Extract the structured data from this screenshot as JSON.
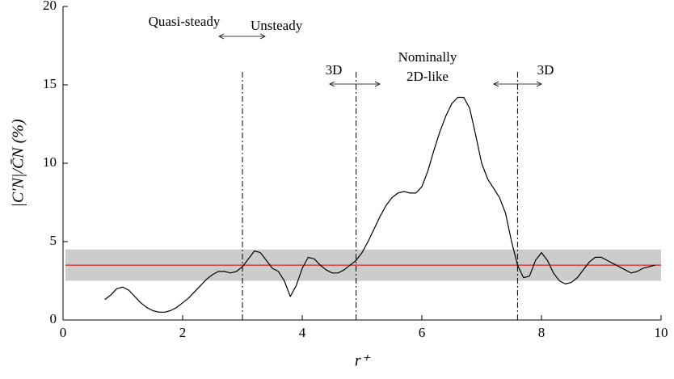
{
  "chart_data": {
    "type": "line",
    "xlabel": "r⁺",
    "ylabel": "|C′N|/C̄N (%)",
    "xlim": [
      0,
      10
    ],
    "ylim": [
      0,
      20
    ],
    "xticks": [
      0,
      2,
      4,
      6,
      8,
      10
    ],
    "yticks": [
      0,
      5,
      10,
      15,
      20
    ],
    "band": [
      2.5,
      4.5
    ],
    "band_color": "#cccccc",
    "reference_line": 3.5,
    "reference_color": "#e0201b",
    "vlines": [
      3.0,
      4.9,
      7.6
    ],
    "annotations": [
      "Quasi-steady",
      "Unsteady",
      "3D",
      "Nominally",
      "2D-like",
      "3D"
    ],
    "series": [
      {
        "color": "#000000",
        "x": [
          0.7,
          0.8,
          0.9,
          1.0,
          1.1,
          1.2,
          1.3,
          1.4,
          1.5,
          1.6,
          1.7,
          1.8,
          1.9,
          2.0,
          2.1,
          2.2,
          2.3,
          2.4,
          2.5,
          2.6,
          2.7,
          2.8,
          2.9,
          3.0,
          3.1,
          3.2,
          3.3,
          3.4,
          3.5,
          3.6,
          3.7,
          3.8,
          3.9,
          4.0,
          4.1,
          4.2,
          4.3,
          4.4,
          4.5,
          4.6,
          4.7,
          4.8,
          4.9,
          5.0,
          5.1,
          5.2,
          5.3,
          5.4,
          5.5,
          5.6,
          5.7,
          5.8,
          5.9,
          6.0,
          6.1,
          6.2,
          6.3,
          6.4,
          6.5,
          6.6,
          6.7,
          6.8,
          6.9,
          7.0,
          7.1,
          7.2,
          7.3,
          7.4,
          7.5,
          7.6,
          7.7,
          7.8,
          7.9,
          8.0,
          8.1,
          8.2,
          8.3,
          8.4,
          8.5,
          8.6,
          8.7,
          8.8,
          8.9,
          9.0,
          9.1,
          9.2,
          9.3,
          9.4,
          9.5,
          9.6,
          9.7,
          9.8,
          9.9
        ],
        "values": [
          1.3,
          1.6,
          2.0,
          2.1,
          1.9,
          1.5,
          1.1,
          0.8,
          0.6,
          0.5,
          0.5,
          0.6,
          0.8,
          1.1,
          1.4,
          1.8,
          2.2,
          2.6,
          2.9,
          3.1,
          3.1,
          3.0,
          3.1,
          3.4,
          3.9,
          4.4,
          4.3,
          3.8,
          3.3,
          3.1,
          2.5,
          1.5,
          2.2,
          3.3,
          4.0,
          3.9,
          3.5,
          3.2,
          3.0,
          3.0,
          3.2,
          3.5,
          3.8,
          4.3,
          5.0,
          5.8,
          6.6,
          7.3,
          7.8,
          8.1,
          8.2,
          8.1,
          8.1,
          8.5,
          9.5,
          10.8,
          12.0,
          13.0,
          13.8,
          14.2,
          14.2,
          13.5,
          11.8,
          10.0,
          9.0,
          8.4,
          7.8,
          6.8,
          5.0,
          3.5,
          2.7,
          2.8,
          3.8,
          4.3,
          3.8,
          3.0,
          2.5,
          2.3,
          2.4,
          2.7,
          3.2,
          3.7,
          4.0,
          4.0,
          3.8,
          3.6,
          3.4,
          3.2,
          3.0,
          3.1,
          3.3,
          3.4,
          3.5
        ]
      }
    ]
  }
}
